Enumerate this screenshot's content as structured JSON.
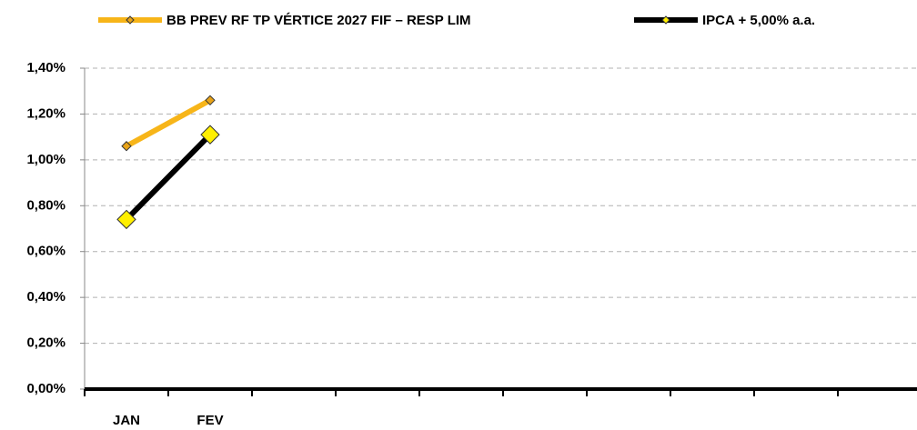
{
  "chart_data": {
    "type": "line",
    "categories": [
      "JAN",
      "FEV",
      null,
      null,
      null,
      null,
      null,
      null,
      null,
      null
    ],
    "series": [
      {
        "name": "BB PREV RF TP VÉRTICE 2027 FIF – RESP LIM",
        "color": "#f7b519",
        "marker_color": "#e8a317",
        "values": [
          1.06,
          1.26,
          null,
          null,
          null,
          null,
          null,
          null,
          null,
          null
        ]
      },
      {
        "name": "IPCA + 5,00% a.a.",
        "color": "#000000",
        "marker_color": "#ffef00",
        "values": [
          0.74,
          1.11,
          null,
          null,
          null,
          null,
          null,
          null,
          null,
          null
        ]
      }
    ],
    "ylim": [
      0,
      1.4
    ],
    "yticks": [
      {
        "value": 0,
        "label": "0,00%"
      },
      {
        "value": 0.2,
        "label": "0,20%"
      },
      {
        "value": 0.4,
        "label": "0,40%"
      },
      {
        "value": 0.6,
        "label": "0,60%"
      },
      {
        "value": 0.8,
        "label": "0,80%"
      },
      {
        "value": 1.0,
        "label": "1,00%"
      },
      {
        "value": 1.2,
        "label": "1,20%"
      },
      {
        "value": 1.4,
        "label": "1,40%"
      }
    ],
    "grid": true,
    "legend": "top"
  }
}
